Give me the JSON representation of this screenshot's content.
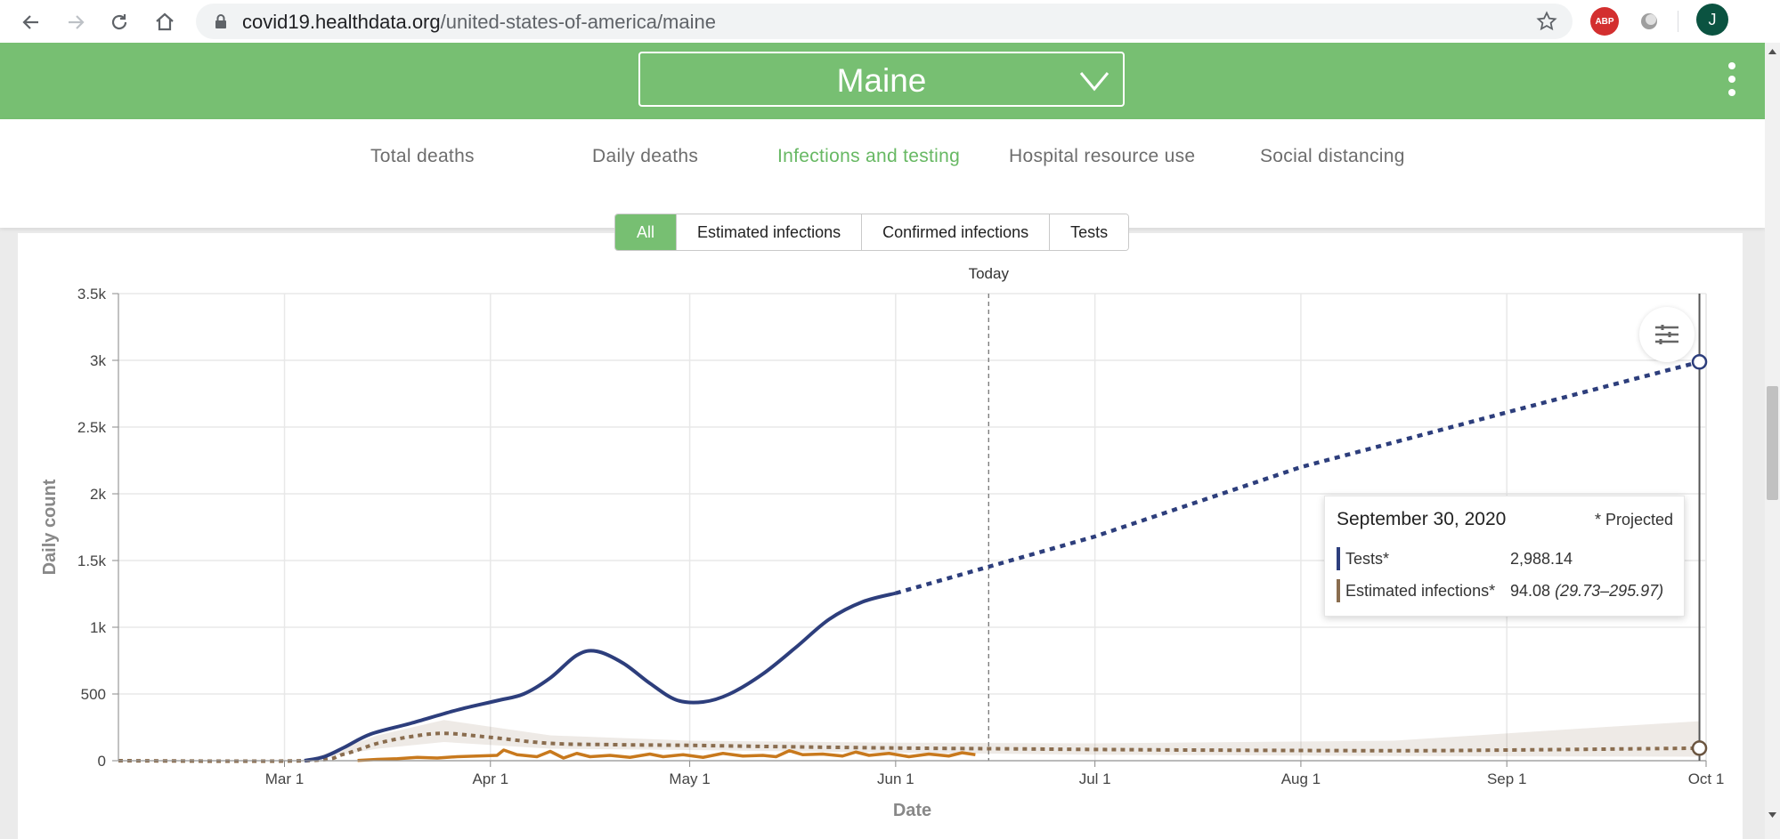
{
  "browser": {
    "url_host": "covid19.healthdata.org",
    "url_path": "/united-states-of-america/maine",
    "profile_initial": "J",
    "abp_label": "ABP"
  },
  "header": {
    "location": "Maine"
  },
  "tabs": [
    {
      "label": "Total deaths",
      "active": false
    },
    {
      "label": "Daily deaths",
      "active": false
    },
    {
      "label": "Infections and testing",
      "active": true
    },
    {
      "label": "Hospital resource use",
      "active": false
    },
    {
      "label": "Social distancing",
      "active": false
    }
  ],
  "filters": [
    {
      "label": "All",
      "active": true
    },
    {
      "label": "Estimated infections",
      "active": false
    },
    {
      "label": "Confirmed infections",
      "active": false
    },
    {
      "label": "Tests",
      "active": false
    }
  ],
  "colors": {
    "accent": "#77bf72",
    "tests": "#2d3e7c",
    "estimated_infections": "#8a6d4f",
    "confirmed_infections": "#c8791d"
  },
  "tooltip": {
    "date": "September 30, 2020",
    "note": "* Projected",
    "rows": [
      {
        "label": "Tests*",
        "value": "2,988.14",
        "range": ""
      },
      {
        "label": "Estimated infections*",
        "value": "94.08",
        "range": "(29.73–295.97)"
      }
    ]
  },
  "chart_data": {
    "type": "line",
    "xlabel": "Date",
    "ylabel": "Daily count",
    "x_ticks": [
      "Mar 1",
      "Apr 1",
      "May 1",
      "Jun 1",
      "Jul 1",
      "Aug 1",
      "Sep 1",
      "Oct 1"
    ],
    "y_ticks": [
      "0",
      "500",
      "1k",
      "1.5k",
      "2k",
      "2.5k",
      "3k",
      "3.5k"
    ],
    "xlim": [
      "2020-02-05",
      "2020-10-01"
    ],
    "ylim": [
      0,
      3500
    ],
    "today_label": "Today",
    "today": "2020-06-15",
    "grid": true,
    "series": [
      {
        "name": "Tests",
        "style": "solid-then-dotted",
        "projected_from": "2020-06-01",
        "points": [
          [
            "2020-03-04",
            0
          ],
          [
            "2020-03-07",
            30
          ],
          [
            "2020-03-10",
            100
          ],
          [
            "2020-03-14",
            200
          ],
          [
            "2020-03-20",
            280
          ],
          [
            "2020-03-27",
            380
          ],
          [
            "2020-04-02",
            450
          ],
          [
            "2020-04-06",
            500
          ],
          [
            "2020-04-10",
            620
          ],
          [
            "2020-04-14",
            790
          ],
          [
            "2020-04-17",
            820
          ],
          [
            "2020-04-21",
            730
          ],
          [
            "2020-04-25",
            580
          ],
          [
            "2020-04-29",
            455
          ],
          [
            "2020-05-03",
            440
          ],
          [
            "2020-05-07",
            500
          ],
          [
            "2020-05-12",
            650
          ],
          [
            "2020-05-17",
            850
          ],
          [
            "2020-05-22",
            1060
          ],
          [
            "2020-05-27",
            1190
          ],
          [
            "2020-06-01",
            1255
          ],
          [
            "2020-07-01",
            1680
          ],
          [
            "2020-08-01",
            2200
          ],
          [
            "2020-09-01",
            2610
          ],
          [
            "2020-09-30",
            2988.14
          ]
        ]
      },
      {
        "name": "Estimated infections",
        "style": "dotted",
        "uncertainty_band": true,
        "points": [
          [
            "2020-02-05",
            0
          ],
          [
            "2020-03-04",
            0
          ],
          [
            "2020-03-10",
            50
          ],
          [
            "2020-03-15",
            130
          ],
          [
            "2020-03-20",
            180
          ],
          [
            "2020-03-25",
            205
          ],
          [
            "2020-04-01",
            175
          ],
          [
            "2020-04-10",
            130
          ],
          [
            "2020-04-20",
            120
          ],
          [
            "2020-05-01",
            115
          ],
          [
            "2020-05-15",
            105
          ],
          [
            "2020-06-01",
            95
          ],
          [
            "2020-06-15",
            90
          ],
          [
            "2020-07-15",
            80
          ],
          [
            "2020-08-15",
            75
          ],
          [
            "2020-09-01",
            80
          ],
          [
            "2020-09-30",
            94.08
          ]
        ],
        "lower": [
          [
            "2020-03-04",
            0
          ],
          [
            "2020-03-15",
            90
          ],
          [
            "2020-03-25",
            140
          ],
          [
            "2020-04-10",
            90
          ],
          [
            "2020-05-01",
            80
          ],
          [
            "2020-06-01",
            60
          ],
          [
            "2020-07-01",
            45
          ],
          [
            "2020-08-15",
            35
          ],
          [
            "2020-09-30",
            29.73
          ]
        ],
        "upper": [
          [
            "2020-03-04",
            0
          ],
          [
            "2020-03-15",
            190
          ],
          [
            "2020-03-25",
            305
          ],
          [
            "2020-04-10",
            190
          ],
          [
            "2020-05-01",
            150
          ],
          [
            "2020-06-01",
            135
          ],
          [
            "2020-07-01",
            130
          ],
          [
            "2020-08-15",
            150
          ],
          [
            "2020-09-15",
            250
          ],
          [
            "2020-09-30",
            295.97
          ]
        ]
      },
      {
        "name": "Confirmed infections",
        "style": "solid",
        "points": [
          [
            "2020-03-12",
            2
          ],
          [
            "2020-03-15",
            10
          ],
          [
            "2020-03-18",
            15
          ],
          [
            "2020-03-21",
            25
          ],
          [
            "2020-03-24",
            20
          ],
          [
            "2020-03-27",
            30
          ],
          [
            "2020-03-30",
            35
          ],
          [
            "2020-04-02",
            40
          ],
          [
            "2020-04-03",
            80
          ],
          [
            "2020-04-05",
            45
          ],
          [
            "2020-04-08",
            30
          ],
          [
            "2020-04-10",
            70
          ],
          [
            "2020-04-12",
            20
          ],
          [
            "2020-04-14",
            55
          ],
          [
            "2020-04-16",
            30
          ],
          [
            "2020-04-19",
            40
          ],
          [
            "2020-04-22",
            25
          ],
          [
            "2020-04-25",
            50
          ],
          [
            "2020-04-27",
            30
          ],
          [
            "2020-04-30",
            45
          ],
          [
            "2020-05-03",
            25
          ],
          [
            "2020-05-06",
            55
          ],
          [
            "2020-05-09",
            35
          ],
          [
            "2020-05-12",
            40
          ],
          [
            "2020-05-14",
            30
          ],
          [
            "2020-05-16",
            75
          ],
          [
            "2020-05-18",
            45
          ],
          [
            "2020-05-21",
            50
          ],
          [
            "2020-05-24",
            35
          ],
          [
            "2020-05-26",
            65
          ],
          [
            "2020-05-28",
            40
          ],
          [
            "2020-05-31",
            55
          ],
          [
            "2020-06-03",
            30
          ],
          [
            "2020-06-06",
            50
          ],
          [
            "2020-06-09",
            35
          ],
          [
            "2020-06-11",
            60
          ],
          [
            "2020-06-13",
            45
          ]
        ]
      }
    ],
    "hover": {
      "date": "2020-09-30"
    }
  }
}
